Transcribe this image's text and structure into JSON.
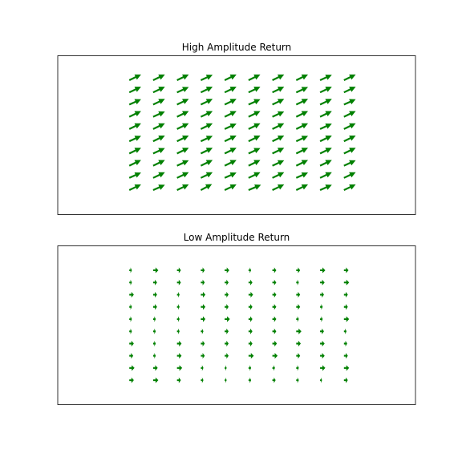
{
  "figure": {
    "background": "#ffffff"
  },
  "chart_data": [
    {
      "type": "quiver",
      "title": "High Amplitude Return",
      "xlabel": "",
      "ylabel": "",
      "axes_visible": false,
      "grid": false,
      "color": "#008000",
      "cols": 10,
      "rows": 10,
      "xlim": [
        -3,
        12
      ],
      "ylim": [
        -2,
        11
      ],
      "x": [
        0,
        1,
        2,
        3,
        4,
        5,
        6,
        7,
        8,
        9
      ],
      "y": [
        0,
        1,
        2,
        3,
        4,
        5,
        6,
        7,
        8,
        9
      ],
      "u": [
        [
          0.9,
          0.9,
          0.9,
          0.85,
          0.9,
          0.95,
          0.9,
          0.9,
          0.9,
          0.9
        ],
        [
          0.9,
          0.9,
          0.9,
          0.9,
          0.9,
          0.9,
          0.9,
          0.9,
          0.9,
          0.9
        ],
        [
          0.9,
          0.9,
          0.9,
          0.9,
          0.9,
          0.9,
          0.9,
          0.9,
          0.9,
          0.9
        ],
        [
          0.9,
          0.9,
          0.9,
          0.9,
          0.9,
          0.9,
          0.9,
          0.9,
          0.9,
          0.9
        ],
        [
          0.9,
          0.9,
          0.9,
          0.9,
          0.9,
          0.9,
          0.9,
          0.9,
          0.9,
          0.9
        ],
        [
          0.9,
          0.9,
          0.9,
          0.9,
          0.9,
          0.9,
          0.9,
          0.9,
          0.9,
          0.9
        ],
        [
          0.9,
          0.9,
          0.9,
          0.9,
          0.9,
          0.9,
          0.9,
          0.9,
          0.9,
          0.9
        ],
        [
          0.9,
          0.9,
          0.9,
          0.9,
          0.9,
          0.9,
          0.9,
          0.9,
          0.9,
          0.9
        ],
        [
          0.9,
          0.9,
          0.9,
          0.9,
          0.9,
          0.9,
          0.9,
          0.9,
          0.9,
          0.9
        ],
        [
          0.9,
          0.9,
          0.9,
          0.9,
          0.9,
          0.9,
          0.9,
          0.9,
          0.9,
          0.9
        ]
      ],
      "v": [
        [
          0.85,
          0.8,
          0.85,
          0.9,
          0.85,
          0.8,
          0.85,
          0.85,
          0.8,
          0.85
        ],
        [
          0.8,
          0.85,
          0.85,
          0.85,
          0.8,
          0.85,
          0.85,
          0.8,
          0.85,
          0.85
        ],
        [
          0.85,
          0.85,
          0.8,
          0.85,
          0.85,
          0.85,
          0.8,
          0.85,
          0.85,
          0.8
        ],
        [
          0.85,
          0.8,
          0.85,
          0.85,
          0.85,
          0.8,
          0.85,
          0.85,
          0.85,
          0.85
        ],
        [
          0.8,
          0.85,
          0.85,
          0.8,
          0.85,
          0.85,
          0.85,
          0.8,
          0.85,
          0.85
        ],
        [
          0.85,
          0.85,
          0.85,
          0.85,
          0.8,
          0.85,
          0.85,
          0.85,
          0.8,
          0.85
        ],
        [
          0.85,
          0.8,
          0.85,
          0.85,
          0.85,
          0.85,
          0.8,
          0.85,
          0.85,
          0.85
        ],
        [
          0.8,
          0.85,
          0.85,
          0.85,
          0.85,
          0.8,
          0.85,
          0.85,
          0.85,
          0.8
        ],
        [
          0.85,
          0.85,
          0.8,
          0.85,
          0.85,
          0.85,
          0.85,
          0.8,
          0.85,
          0.85
        ],
        [
          0.85,
          0.85,
          0.85,
          0.8,
          0.85,
          0.85,
          0.85,
          0.85,
          0.8,
          0.85
        ]
      ]
    },
    {
      "type": "quiver",
      "title": "Low Amplitude Return",
      "xlabel": "",
      "ylabel": "",
      "axes_visible": false,
      "grid": false,
      "color": "#008000",
      "cols": 10,
      "rows": 10,
      "xlim": [
        -3,
        12
      ],
      "ylim": [
        -2,
        11
      ],
      "x": [
        0,
        1,
        2,
        3,
        4,
        5,
        6,
        7,
        8,
        9
      ],
      "y": [
        0,
        1,
        2,
        3,
        4,
        5,
        6,
        7,
        8,
        9
      ],
      "u": [
        [
          0.35,
          0.4,
          0.3,
          0.2,
          0.15,
          0.2,
          0.25,
          0.2,
          0.15,
          0.3
        ],
        [
          0.4,
          0.35,
          0.4,
          0.2,
          0.15,
          0.2,
          0.2,
          0.2,
          0.4,
          0.4
        ],
        [
          0.3,
          0.2,
          0.35,
          0.3,
          0.3,
          0.4,
          0.4,
          0.3,
          0.35,
          0.3
        ],
        [
          0.35,
          0.2,
          0.35,
          0.3,
          0.3,
          0.3,
          0.35,
          0.35,
          0.35,
          0.25
        ],
        [
          0.2,
          0.2,
          0.2,
          0.2,
          0.3,
          0.3,
          0.3,
          0.4,
          0.3,
          0.2
        ],
        [
          0.2,
          0.2,
          0.2,
          0.35,
          0.4,
          0.3,
          0.3,
          0.2,
          0.2,
          0.4
        ],
        [
          0.2,
          0.3,
          0.2,
          0.35,
          0.3,
          0.3,
          0.3,
          0.3,
          0.2,
          0.3
        ],
        [
          0.35,
          0.3,
          0.2,
          0.35,
          0.3,
          0.35,
          0.3,
          0.3,
          0.3,
          0.3
        ],
        [
          0.2,
          0.3,
          0.3,
          0.3,
          0.3,
          0.3,
          0.3,
          0.2,
          0.35,
          0.4
        ],
        [
          0.2,
          0.4,
          0.3,
          0.3,
          0.35,
          0.2,
          0.3,
          0.3,
          0.4,
          0.35
        ]
      ],
      "v": [
        [
          0,
          0,
          0,
          0,
          0,
          0,
          0,
          0,
          0,
          0
        ],
        [
          0,
          0,
          0,
          0,
          0,
          0,
          0,
          0,
          0,
          0
        ],
        [
          0,
          0,
          0,
          0,
          0,
          0,
          0,
          0,
          0,
          0
        ],
        [
          0,
          0,
          0,
          0,
          0,
          0,
          0,
          0,
          0,
          0
        ],
        [
          0,
          0,
          0,
          0,
          0,
          0,
          0,
          0,
          0,
          0
        ],
        [
          0,
          0,
          0,
          0,
          0,
          0,
          0,
          0,
          0,
          0
        ],
        [
          0,
          0,
          0,
          0,
          0,
          0,
          0,
          0,
          0,
          0
        ],
        [
          0,
          0,
          0,
          0,
          0,
          0,
          0,
          0,
          0,
          0
        ],
        [
          0,
          0,
          0,
          0,
          0,
          0,
          0,
          0,
          0,
          0
        ],
        [
          0,
          0,
          0,
          0,
          0,
          0,
          0,
          0,
          0,
          0
        ]
      ]
    }
  ]
}
